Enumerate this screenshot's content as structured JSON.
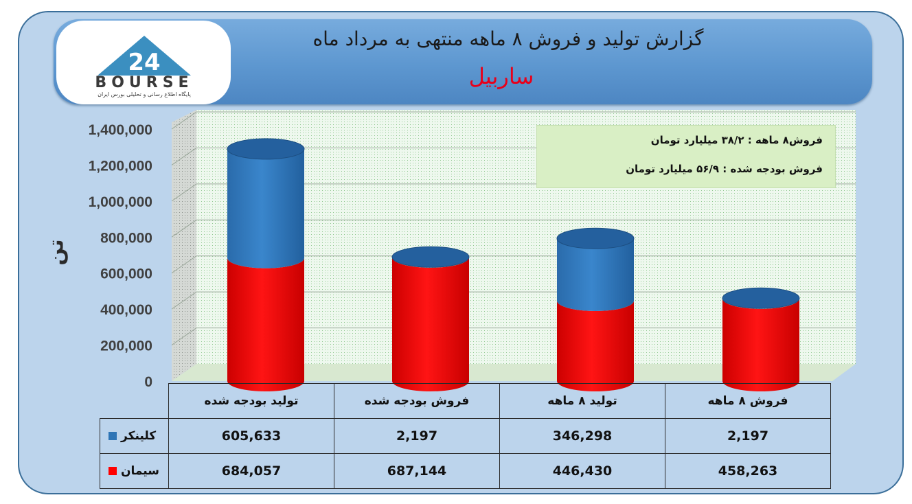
{
  "header": {
    "title": "گزارش تولید و فروش ۸ ماهه منتهی به مرداد ماه",
    "subtitle": "ساربیل"
  },
  "logo": {
    "brand_text": "BOURSE",
    "brand_number": "24",
    "tagline": "پایگاه اطلاع رسانی و تحلیلی بورس ایران",
    "colors": {
      "triangle": "#3b8fc0",
      "text": "#3a3a3a"
    }
  },
  "unit_label": "تن",
  "info_box": {
    "line1": "فروش۸ ماهه : ۳۸/۲ میلیارد تومان",
    "line2": "فروش بودجه شده : ۵۶/۹ میلیارد تومان"
  },
  "chart_data": {
    "type": "bar",
    "stacked": true,
    "shape": "cylinder",
    "categories": [
      "تولید بودجه شده",
      "فروش بودجه شده",
      "تولید ۸ ماهه",
      "فروش ۸ ماهه"
    ],
    "series": [
      {
        "name": "سیمان",
        "color": "#ff0000",
        "values": [
          684057,
          687144,
          446430,
          458263
        ]
      },
      {
        "name": "کلینکر",
        "color": "#2e75b6",
        "values": [
          605633,
          2197,
          346298,
          2197
        ]
      }
    ],
    "ylim": [
      0,
      1400000
    ],
    "yticks": [
      0,
      200000,
      400000,
      600000,
      800000,
      1000000,
      1200000,
      1400000
    ],
    "ytick_labels": [
      "0",
      "200,000",
      "400,000",
      "600,000",
      "800,000",
      "1,000,000",
      "1,200,000",
      "1,400,000"
    ],
    "grid": true,
    "legend": "data-table",
    "table_values": {
      "کلینکر": [
        "605,633",
        "2,197",
        "346,298",
        "2,197"
      ],
      "سیمان": [
        "684,057",
        "687,144",
        "446,430",
        "458,263"
      ]
    }
  }
}
